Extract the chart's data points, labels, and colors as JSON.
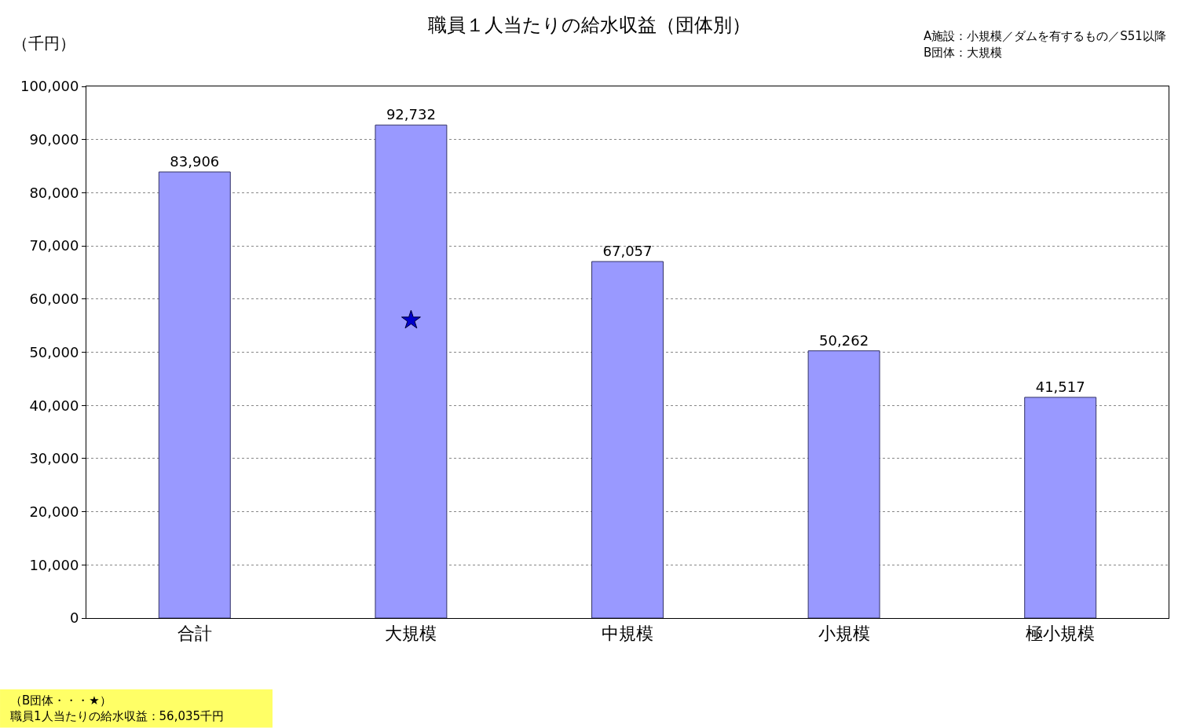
{
  "chart_data": {
    "type": "bar",
    "title": "職員１人当たりの給水収益（団体別）",
    "ylabel": "（千円）",
    "categories": [
      "合計",
      "大規模",
      "中規模",
      "小規模",
      "極小規模"
    ],
    "series": [
      {
        "color": "#9999ff",
        "values": [
          83906,
          92732,
          67057,
          50262,
          41517
        ],
        "value_labels": [
          "83,906",
          "92,732",
          "67,057",
          "50,262",
          "41,517"
        ]
      },
      {
        "type": "scatter",
        "x": [
          "大規模"
        ],
        "values": [
          56035
        ],
        "color": "#0000cc",
        "marker": "star"
      }
    ],
    "ylim": [
      0,
      100000
    ],
    "yticks": [
      0,
      {
        "value": 10000,
        "label": "10,000"
      },
      {
        "value": 20000,
        "label": "20,000"
      },
      {
        "value": 30000,
        "label": "30,000"
      },
      {
        "value": 40000,
        "label": "40,000"
      },
      {
        "value": 50000,
        "label": "50,000"
      },
      {
        "value": 60000,
        "label": "60,000"
      },
      {
        "value": 70000,
        "label": "70,000"
      },
      {
        "value": 80000,
        "label": "80,000"
      },
      {
        "value": 90000,
        "label": "90,000"
      },
      {
        "value": 100000,
        "label": "100,000"
      }
    ],
    "grid": "y",
    "annotations": [
      "A施設：小規模／ダムを有するもの／S51以降",
      "B団体：大規模",
      "（B団体・・・★）",
      "職員1人当たりの給水収益：56,035千円"
    ]
  }
}
